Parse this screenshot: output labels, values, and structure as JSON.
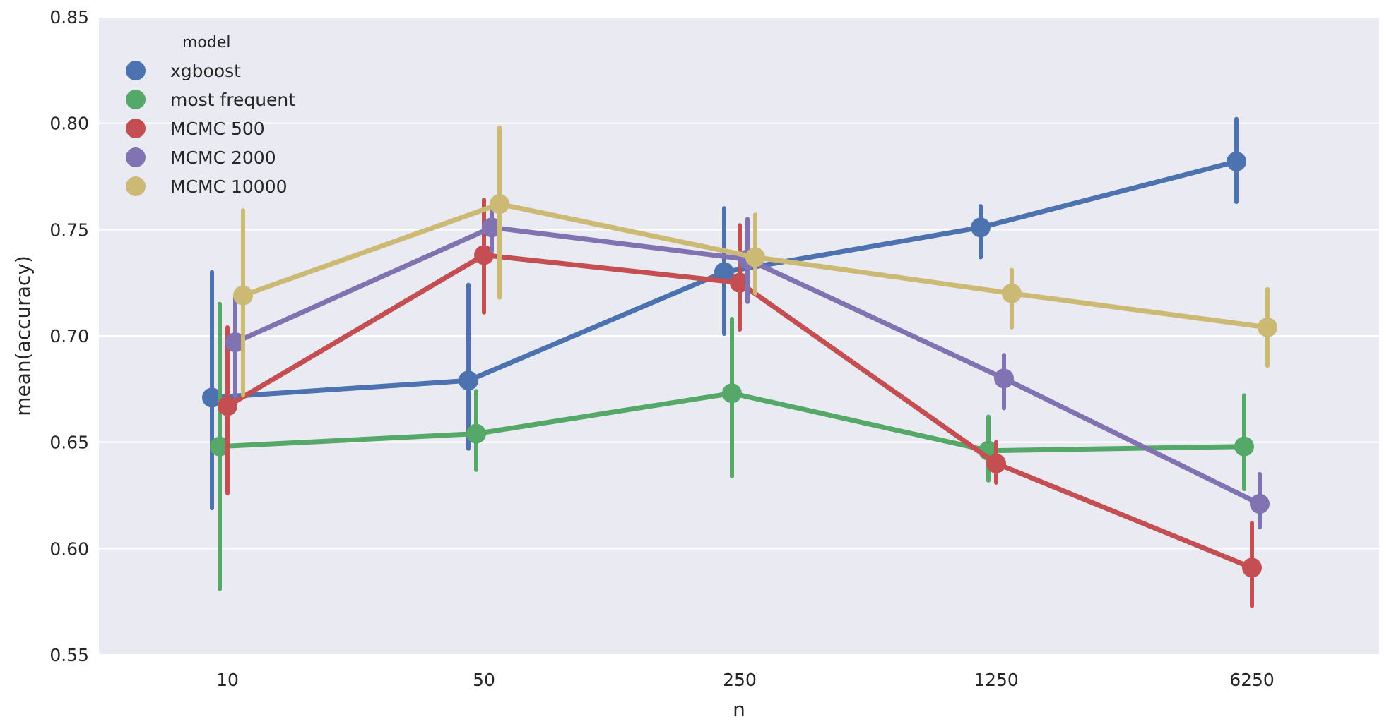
{
  "chart_data": {
    "type": "line",
    "xlabel": "n",
    "ylabel": "mean(accuracy)",
    "categories": [
      "10",
      "50",
      "250",
      "1250",
      "6250"
    ],
    "ylim": [
      0.55,
      0.85
    ],
    "yticks": [
      "0.55",
      "0.60",
      "0.65",
      "0.70",
      "0.75",
      "0.80",
      "0.85"
    ],
    "grid": true,
    "legend": {
      "title": "model",
      "position": "top-left"
    },
    "series": [
      {
        "name": "xgboost",
        "color": "#4c72b0",
        "values": [
          0.671,
          0.679,
          0.73,
          0.751,
          0.782
        ],
        "ci_low": [
          0.619,
          0.647,
          0.701,
          0.737,
          0.763
        ],
        "ci_high": [
          0.73,
          0.724,
          0.76,
          0.761,
          0.802
        ]
      },
      {
        "name": "most frequent",
        "color": "#55a868",
        "values": [
          0.648,
          0.654,
          0.673,
          0.646,
          0.648
        ],
        "ci_low": [
          0.581,
          0.637,
          0.634,
          0.632,
          0.628
        ],
        "ci_high": [
          0.715,
          0.674,
          0.708,
          0.662,
          0.672
        ]
      },
      {
        "name": "MCMC 500",
        "color": "#c44e52",
        "values": [
          0.667,
          0.738,
          0.725,
          0.64,
          0.591
        ],
        "ci_low": [
          0.626,
          0.711,
          0.703,
          0.631,
          0.573
        ],
        "ci_high": [
          0.704,
          0.764,
          0.752,
          0.65,
          0.612
        ]
      },
      {
        "name": "MCMC 2000",
        "color": "#8172b2",
        "values": [
          0.697,
          0.751,
          0.736,
          0.68,
          0.621
        ],
        "ci_low": [
          0.672,
          0.74,
          0.716,
          0.666,
          0.61
        ],
        "ci_high": [
          0.718,
          0.76,
          0.755,
          0.691,
          0.635
        ]
      },
      {
        "name": "MCMC 10000",
        "color": "#ccb974",
        "values": [
          0.719,
          0.762,
          0.737,
          0.72,
          0.704
        ],
        "ci_low": [
          0.672,
          0.718,
          0.72,
          0.704,
          0.686
        ],
        "ci_high": [
          0.759,
          0.798,
          0.757,
          0.731,
          0.722
        ]
      }
    ]
  }
}
